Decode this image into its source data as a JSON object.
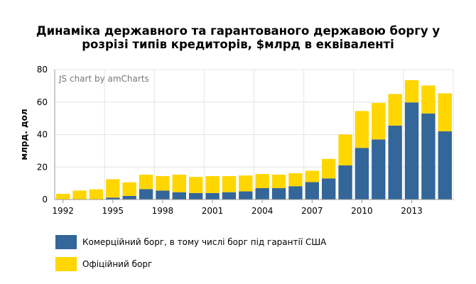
{
  "title_line1": "Динаміка державного та гарантованого державою боргу у",
  "title_line2": "розрізі типів кредиторів, $млрд в еквіваленті",
  "colors": {
    "commercial": "#336699",
    "official": "#FFD600"
  },
  "chart_data": {
    "type": "bar",
    "stacked": true,
    "title": "Динаміка державного та гарантованого державою боргу у розрізі типів кредиторів, $млрд в еквіваленті",
    "ylabel": "млрд. дол",
    "xlabel": "",
    "ylim": [
      0,
      80
    ],
    "yticks": [
      0,
      20,
      40,
      60,
      80
    ],
    "xticks": [
      "1992",
      "1995",
      "1998",
      "2001",
      "2004",
      "2007",
      "2010",
      "2013"
    ],
    "watermark": "JS chart by amCharts",
    "legend_position": "bottom",
    "categories": [
      "1992",
      "1993",
      "1994",
      "1995",
      "1996",
      "1997",
      "1998",
      "1999",
      "2000",
      "2001",
      "2002",
      "2003",
      "2004",
      "2005",
      "2006",
      "2007",
      "2008",
      "2009",
      "2010",
      "2011",
      "2012",
      "2013",
      "2014",
      "2015"
    ],
    "series": [
      {
        "name": "Комерційний борг, в тому числі борг під гарантії США",
        "values": [
          0,
          0,
          0.2,
          1.2,
          2.2,
          6.4,
          5.5,
          4.5,
          4,
          4,
          4.5,
          5,
          7,
          7,
          8.2,
          10.7,
          13,
          21,
          31.8,
          37,
          45.5,
          59.8,
          53,
          42
        ]
      },
      {
        "name": "Офіційний борг",
        "values": [
          3.5,
          5.5,
          6.1,
          11.3,
          8.4,
          8.9,
          8.9,
          10.8,
          9.9,
          10.4,
          9.9,
          9.8,
          8.7,
          8.3,
          8,
          7,
          12,
          19,
          22.7,
          22.5,
          19.5,
          13.7,
          17.2,
          23.4
        ]
      }
    ]
  }
}
